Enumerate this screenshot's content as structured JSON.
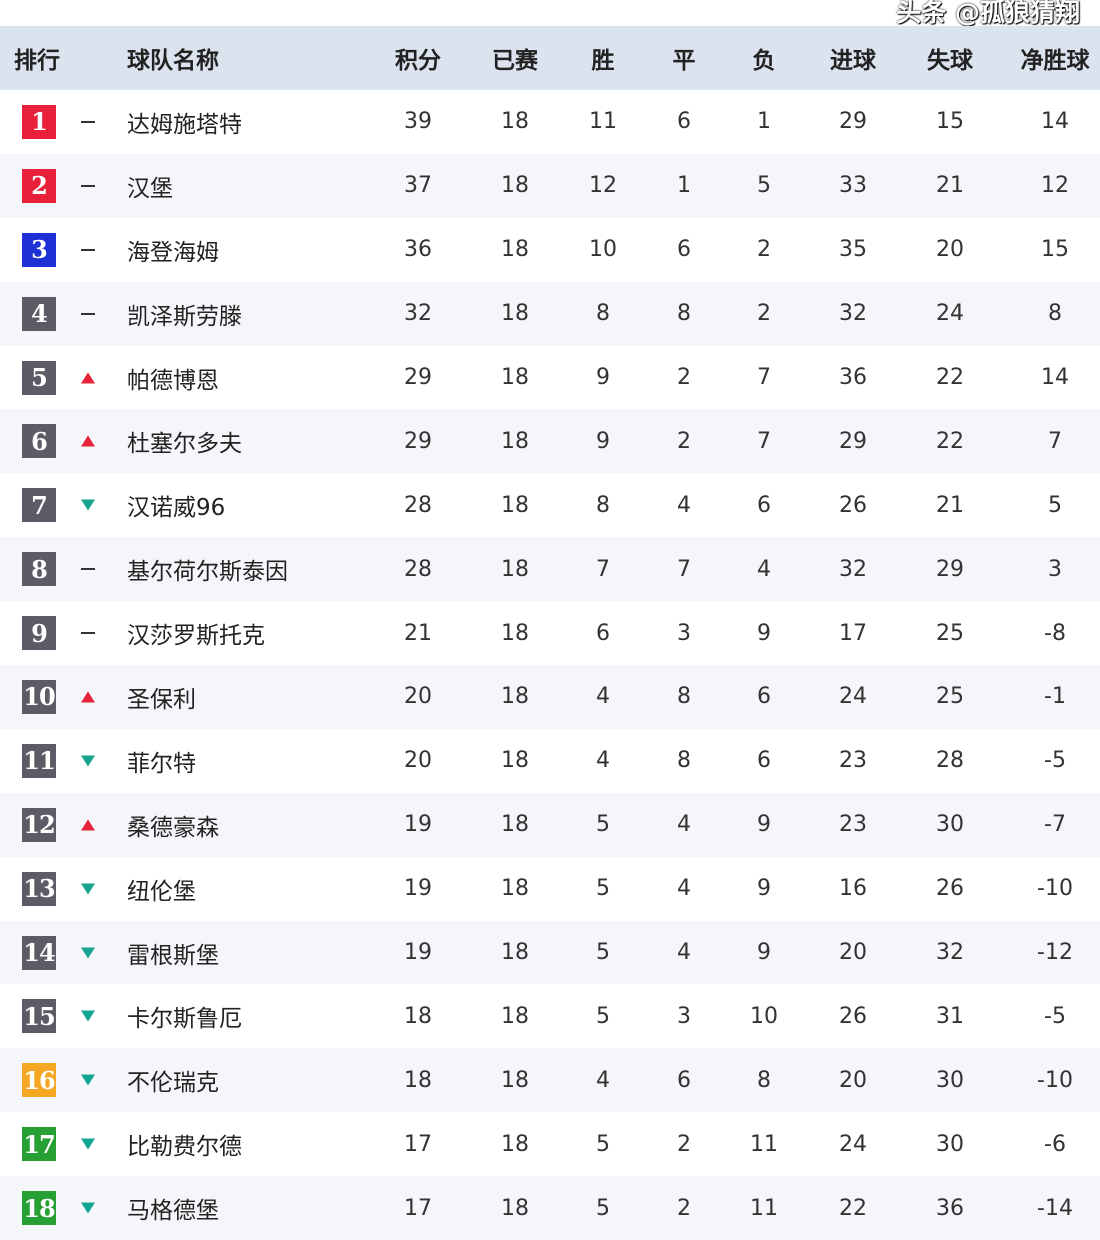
{
  "headers": {
    "rank": "排行",
    "team": "球队名称",
    "pts": "积分",
    "played": "已赛",
    "w": "胜",
    "d": "平",
    "l": "负",
    "gf": "进球",
    "ga": "失球",
    "gd": "净胜球"
  },
  "colors": {
    "red": "#e8203a",
    "blue": "#1f2fd6",
    "gray": "#5c5c66",
    "orange": "#f5a623",
    "green": "#27a033",
    "up": "#e8203a",
    "down": "#13a58f"
  },
  "rows": [
    {
      "rank": "1",
      "badge": "red",
      "trend": "flat",
      "team": "达姆施塔特",
      "pts": "39",
      "played": "18",
      "w": "11",
      "d": "6",
      "l": "1",
      "gf": "29",
      "ga": "15",
      "gd": "14"
    },
    {
      "rank": "2",
      "badge": "red",
      "trend": "flat",
      "team": "汉堡",
      "pts": "37",
      "played": "18",
      "w": "12",
      "d": "1",
      "l": "5",
      "gf": "33",
      "ga": "21",
      "gd": "12"
    },
    {
      "rank": "3",
      "badge": "blue",
      "trend": "flat",
      "team": "海登海姆",
      "pts": "36",
      "played": "18",
      "w": "10",
      "d": "6",
      "l": "2",
      "gf": "35",
      "ga": "20",
      "gd": "15"
    },
    {
      "rank": "4",
      "badge": "gray",
      "trend": "flat",
      "team": "凯泽斯劳滕",
      "pts": "32",
      "played": "18",
      "w": "8",
      "d": "8",
      "l": "2",
      "gf": "32",
      "ga": "24",
      "gd": "8"
    },
    {
      "rank": "5",
      "badge": "gray",
      "trend": "up",
      "team": "帕德博恩",
      "pts": "29",
      "played": "18",
      "w": "9",
      "d": "2",
      "l": "7",
      "gf": "36",
      "ga": "22",
      "gd": "14"
    },
    {
      "rank": "6",
      "badge": "gray",
      "trend": "up",
      "team": "杜塞尔多夫",
      "pts": "29",
      "played": "18",
      "w": "9",
      "d": "2",
      "l": "7",
      "gf": "29",
      "ga": "22",
      "gd": "7"
    },
    {
      "rank": "7",
      "badge": "gray",
      "trend": "down",
      "team": "汉诺威96",
      "pts": "28",
      "played": "18",
      "w": "8",
      "d": "4",
      "l": "6",
      "gf": "26",
      "ga": "21",
      "gd": "5"
    },
    {
      "rank": "8",
      "badge": "gray",
      "trend": "flat",
      "team": "基尔荷尔斯泰因",
      "pts": "28",
      "played": "18",
      "w": "7",
      "d": "7",
      "l": "4",
      "gf": "32",
      "ga": "29",
      "gd": "3"
    },
    {
      "rank": "9",
      "badge": "gray",
      "trend": "flat",
      "team": "汉莎罗斯托克",
      "pts": "21",
      "played": "18",
      "w": "6",
      "d": "3",
      "l": "9",
      "gf": "17",
      "ga": "25",
      "gd": "-8"
    },
    {
      "rank": "10",
      "badge": "gray",
      "trend": "up",
      "team": "圣保利",
      "pts": "20",
      "played": "18",
      "w": "4",
      "d": "8",
      "l": "6",
      "gf": "24",
      "ga": "25",
      "gd": "-1"
    },
    {
      "rank": "11",
      "badge": "gray",
      "trend": "down",
      "team": "菲尔特",
      "pts": "20",
      "played": "18",
      "w": "4",
      "d": "8",
      "l": "6",
      "gf": "23",
      "ga": "28",
      "gd": "-5"
    },
    {
      "rank": "12",
      "badge": "gray",
      "trend": "up",
      "team": "桑德豪森",
      "pts": "19",
      "played": "18",
      "w": "5",
      "d": "4",
      "l": "9",
      "gf": "23",
      "ga": "30",
      "gd": "-7"
    },
    {
      "rank": "13",
      "badge": "gray",
      "trend": "down",
      "team": "纽伦堡",
      "pts": "19",
      "played": "18",
      "w": "5",
      "d": "4",
      "l": "9",
      "gf": "16",
      "ga": "26",
      "gd": "-10"
    },
    {
      "rank": "14",
      "badge": "gray",
      "trend": "down",
      "team": "雷根斯堡",
      "pts": "19",
      "played": "18",
      "w": "5",
      "d": "4",
      "l": "9",
      "gf": "20",
      "ga": "32",
      "gd": "-12"
    },
    {
      "rank": "15",
      "badge": "gray",
      "trend": "down",
      "team": "卡尔斯鲁厄",
      "pts": "18",
      "played": "18",
      "w": "5",
      "d": "3",
      "l": "10",
      "gf": "26",
      "ga": "31",
      "gd": "-5"
    },
    {
      "rank": "16",
      "badge": "orange",
      "trend": "down",
      "team": "不伦瑞克",
      "pts": "18",
      "played": "18",
      "w": "4",
      "d": "6",
      "l": "8",
      "gf": "20",
      "ga": "30",
      "gd": "-10"
    },
    {
      "rank": "17",
      "badge": "green",
      "trend": "down",
      "team": "比勒费尔德",
      "pts": "17",
      "played": "18",
      "w": "5",
      "d": "2",
      "l": "11",
      "gf": "24",
      "ga": "30",
      "gd": "-6"
    },
    {
      "rank": "18",
      "badge": "green",
      "trend": "down",
      "team": "马格德堡",
      "pts": "17",
      "played": "18",
      "w": "5",
      "d": "2",
      "l": "11",
      "gf": "22",
      "ga": "36",
      "gd": "-14"
    }
  ],
  "watermark": "头条 @孤狼猜翔"
}
